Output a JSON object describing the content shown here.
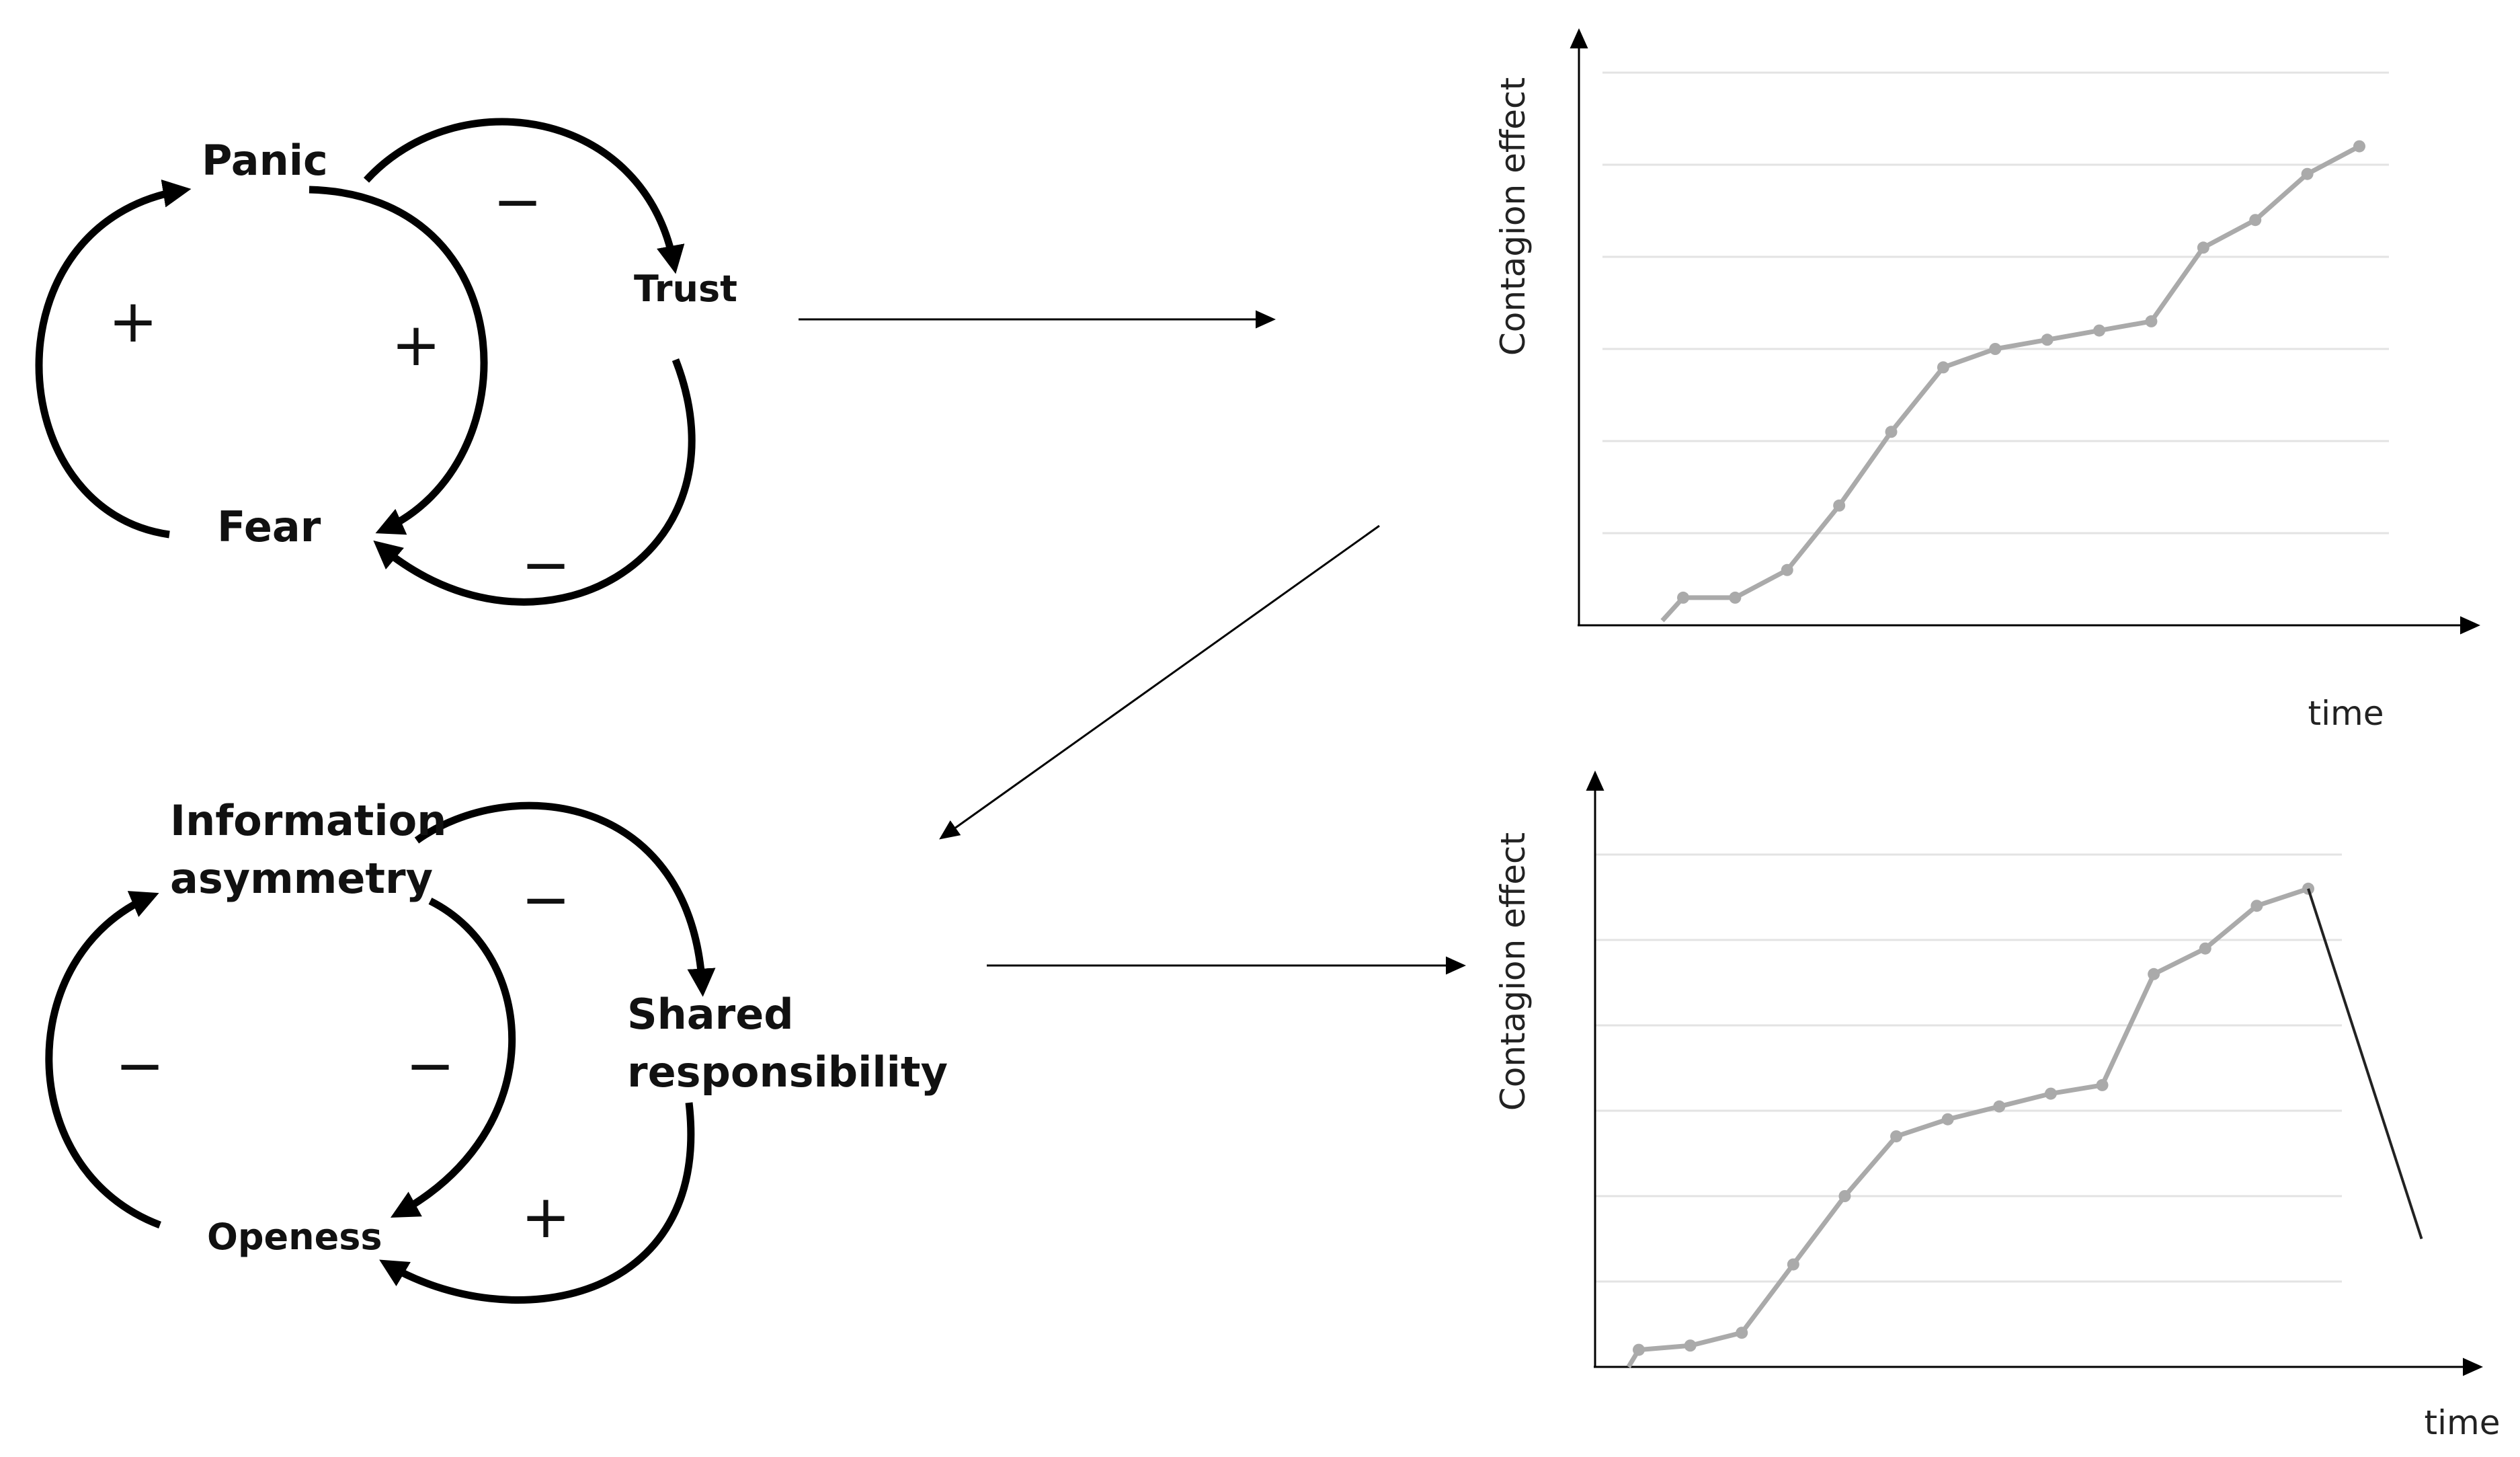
{
  "loop_top": {
    "nodes": {
      "panic": "Panic",
      "trust": "Trust",
      "fear": "Fear"
    },
    "signs": {
      "left": "+",
      "inner": "+",
      "upper": "−",
      "lower": "−"
    }
  },
  "loop_bottom": {
    "nodes": {
      "info_line1": "Information",
      "info_line2": "asymmetry",
      "shared_line1": "Shared",
      "shared_line2": "responsibility",
      "openess": "Openess"
    },
    "signs": {
      "left": "−",
      "inner": "−",
      "upper": "−",
      "lower": "+"
    }
  },
  "chart_data": [
    {
      "type": "line",
      "xlabel": "time",
      "ylabel": "Contagion effect",
      "x": [
        1,
        2,
        3,
        4,
        5,
        6,
        7,
        8,
        9,
        10,
        11,
        12,
        13,
        14
      ],
      "y": [
        0.3,
        0.3,
        0.6,
        1.3,
        2.1,
        2.8,
        3.0,
        3.1,
        3.2,
        3.3,
        4.1,
        4.4,
        4.9,
        5.2
      ],
      "lead_in": [
        0.4,
        0.05
      ],
      "ylim": [
        0,
        6
      ],
      "gridlines": 6,
      "series_color": "#aaaaaa",
      "grid_color": "#e3e3e3"
    },
    {
      "type": "line",
      "xlabel": "time",
      "ylabel": "Contagion effect",
      "x": [
        1,
        2,
        3,
        4,
        5,
        6,
        7,
        8,
        9,
        10,
        11,
        12,
        13,
        14
      ],
      "y": [
        0.2,
        0.25,
        0.4,
        1.2,
        2.0,
        2.7,
        2.9,
        3.05,
        3.2,
        3.3,
        4.6,
        4.9,
        5.4,
        5.6
      ],
      "lead_in": [
        0.2,
        0.0
      ],
      "decline_to": {
        "x": 16.2,
        "y": 1.5
      },
      "ylim": [
        0,
        6
      ],
      "gridlines": 6,
      "series_color": "#aaaaaa",
      "decline_color": "#222222",
      "grid_color": "#e3e3e3"
    }
  ]
}
